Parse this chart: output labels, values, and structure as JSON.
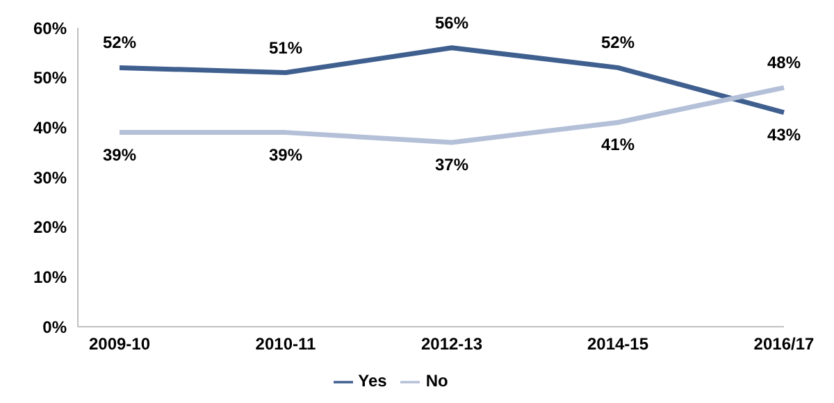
{
  "chart_data": {
    "type": "line",
    "categories": [
      "2009-10",
      "2010-11",
      "2012-13",
      "2014-15",
      "2016/17"
    ],
    "ylim": [
      0,
      60
    ],
    "yticks": [
      {
        "value": 0,
        "label": "0%"
      },
      {
        "value": 10,
        "label": "10%"
      },
      {
        "value": 20,
        "label": "20%"
      },
      {
        "value": 30,
        "label": "30%"
      },
      {
        "value": 40,
        "label": "40%"
      },
      {
        "value": 50,
        "label": "50%"
      },
      {
        "value": 60,
        "label": "60%"
      }
    ],
    "series": [
      {
        "name": "Yes",
        "color": "#3f5f8f",
        "values": [
          52,
          51,
          56,
          52,
          43
        ],
        "value_labels": [
          "52%",
          "51%",
          "56%",
          "52%",
          "43%"
        ]
      },
      {
        "name": "No",
        "color": "#b4c0d8",
        "values": [
          39,
          39,
          37,
          41,
          48
        ],
        "value_labels": [
          "39%",
          "39%",
          "37%",
          "41%",
          "48%"
        ]
      }
    ],
    "grid": false,
    "legend": "bottom",
    "marker": "none",
    "line_style": "solid"
  }
}
